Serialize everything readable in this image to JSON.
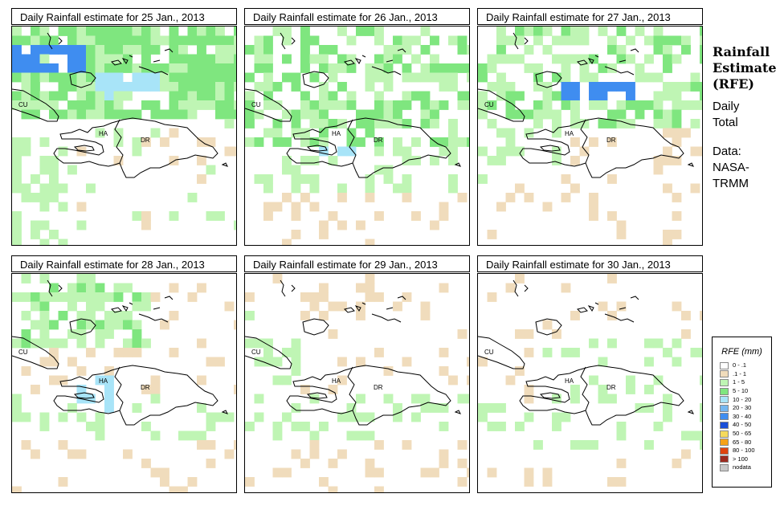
{
  "panels": [
    {
      "title": "Daily Rainfall estimate for  25 Jan., 2013"
    },
    {
      "title": "Daily Rainfall estimate for  26 Jan., 2013"
    },
    {
      "title": "Daily Rainfall estimate for  27 Jan., 2013"
    },
    {
      "title": "Daily Rainfall estimate for  28 Jan., 2013"
    },
    {
      "title": "Daily Rainfall estimate for  29 Jan., 2013"
    },
    {
      "title": "Daily Rainfall estimate for  30 Jan., 2013"
    }
  ],
  "map_labels": {
    "cuba": "CU",
    "haiti": "HA",
    "dominican_republic": "DR"
  },
  "side": {
    "title_line1": "Rainfall",
    "title_line2": "Estimate",
    "title_line3": "(RFE)",
    "daily_line1": "Daily",
    "daily_line2": "Total",
    "data_line1": "Data:",
    "data_line2": "NASA-",
    "data_line3": "TRMM"
  },
  "legend": {
    "title": "RFE (mm)",
    "items": [
      {
        "label": "0 - .1",
        "color": "#ffffff"
      },
      {
        "label": ".1 - 1",
        "color": "#f0dcbc"
      },
      {
        "label": "1 - 5",
        "color": "#bff5b4"
      },
      {
        "label": "5 - 10",
        "color": "#7fe67f"
      },
      {
        "label": "10 - 20",
        "color": "#a8e4f8"
      },
      {
        "label": "20 - 30",
        "color": "#74b7f1"
      },
      {
        "label": "30 - 40",
        "color": "#3f8df0"
      },
      {
        "label": "40 - 50",
        "color": "#1a4fd8"
      },
      {
        "label": "50 - 65",
        "color": "#f5da5c"
      },
      {
        "label": "65 - 80",
        "color": "#f5a218"
      },
      {
        "label": "80 - 100",
        "color": "#e0440e"
      },
      {
        "label": "> 100",
        "color": "#9c2a1f"
      },
      {
        "label": "nodata",
        "color": "#c8c8c8"
      }
    ]
  }
}
